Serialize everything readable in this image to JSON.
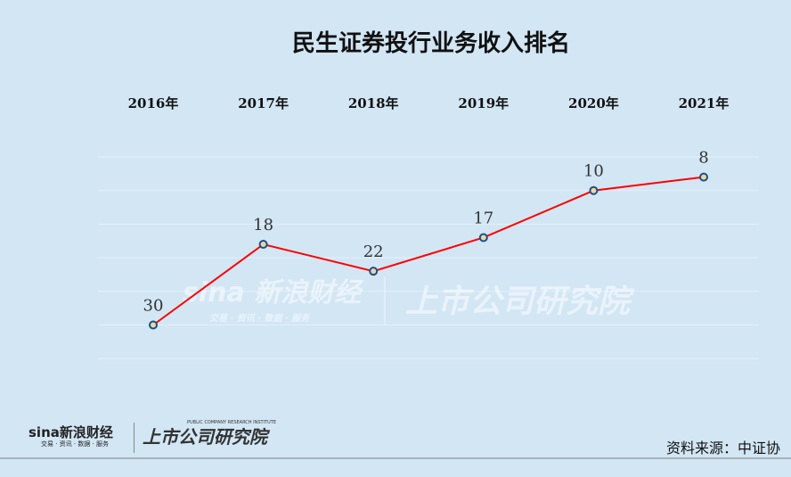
{
  "chart_data": {
    "type": "line",
    "title": "民生证券投行业务收入排名",
    "categories": [
      "2016年",
      "2017年",
      "2018年",
      "2019年",
      "2020年",
      "2021年"
    ],
    "values": [
      30,
      18,
      22,
      17,
      10,
      8
    ],
    "y_reversed": true,
    "ylim": [
      5,
      35
    ],
    "grid": true,
    "line_color": "#ff0000",
    "marker_fill": "#e8d9a0",
    "marker_stroke": "#1f4e8c"
  },
  "watermark": {
    "left": "sina 新浪财经",
    "left_sub": "交易 · 资讯 · 数据 · 服务",
    "right": "上市公司研究院"
  },
  "footer": {
    "sina": "sina新浪财经",
    "sina_sub": "交易 · 资讯 · 数据 · 服务",
    "institute": "上市公司研究院",
    "institute_en": "PUBLIC COMPANY RESEARCH INSTITUTE",
    "source": "资料来源：中证协"
  }
}
